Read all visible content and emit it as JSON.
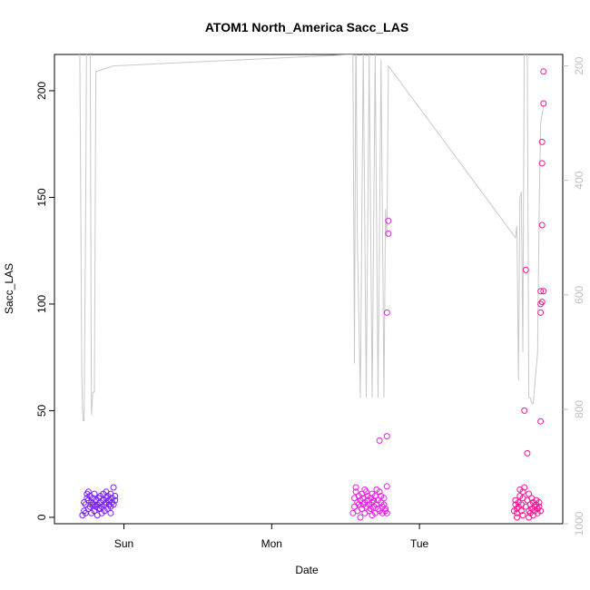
{
  "chart_data": {
    "type": "scatter",
    "title": "ATOM1 North_America Sacc_LAS",
    "xlabel": "Date",
    "ylabel": "Sacc_LAS",
    "x_ticks": [
      "Sun",
      "Mon",
      "Tue"
    ],
    "x_tick_pos": [
      1.0,
      2.0,
      3.0
    ],
    "xlim": [
      0.53,
      3.97
    ],
    "ylim": [
      -3,
      217
    ],
    "y_ticks": [
      0,
      50,
      100,
      150,
      200
    ],
    "y2_ticks": [
      200,
      400,
      600,
      800,
      1000
    ],
    "y2lim": [
      1000,
      180
    ],
    "grid": false,
    "colors": {
      "scatter_group1": "#7a1fff",
      "scatter_group2": "#e91ee6",
      "scatter_group3": "#ff1493",
      "secondary_line": "#c8c8c8"
    },
    "series": [
      {
        "color": "#7a1fff",
        "points": [
          [
            0.72,
            1
          ],
          [
            0.73,
            3
          ],
          [
            0.74,
            2
          ],
          [
            0.74,
            6
          ],
          [
            0.75,
            9
          ],
          [
            0.75,
            11
          ],
          [
            0.76,
            4
          ],
          [
            0.76,
            8
          ],
          [
            0.77,
            5
          ],
          [
            0.77,
            10
          ],
          [
            0.78,
            7
          ],
          [
            0.78,
            2
          ],
          [
            0.79,
            6
          ],
          [
            0.79,
            9
          ],
          [
            0.8,
            3
          ],
          [
            0.8,
            11
          ],
          [
            0.81,
            5
          ],
          [
            0.81,
            8
          ],
          [
            0.82,
            1
          ],
          [
            0.82,
            6
          ],
          [
            0.83,
            9
          ],
          [
            0.83,
            4
          ],
          [
            0.84,
            7
          ],
          [
            0.84,
            10
          ],
          [
            0.85,
            2
          ],
          [
            0.85,
            5
          ],
          [
            0.86,
            8
          ],
          [
            0.86,
            11
          ],
          [
            0.87,
            6
          ],
          [
            0.87,
            3
          ],
          [
            0.88,
            9
          ],
          [
            0.88,
            7
          ],
          [
            0.89,
            4
          ],
          [
            0.89,
            10
          ],
          [
            0.9,
            6
          ],
          [
            0.9,
            8
          ],
          [
            0.91,
            11
          ],
          [
            0.91,
            5
          ],
          [
            0.92,
            7
          ],
          [
            0.92,
            9
          ],
          [
            0.93,
            14
          ],
          [
            0.93,
            6
          ],
          [
            0.94,
            8
          ],
          [
            0.94,
            10
          ],
          [
            0.73,
            7
          ],
          [
            0.76,
            12
          ],
          [
            0.8,
            6
          ],
          [
            0.84,
            4
          ],
          [
            0.88,
            12
          ],
          [
            0.91,
            2
          ]
        ]
      },
      {
        "color": "#e91ee6",
        "points": [
          [
            2.55,
            2
          ],
          [
            2.56,
            5
          ],
          [
            2.56,
            9
          ],
          [
            2.57,
            12
          ],
          [
            2.57,
            14
          ],
          [
            2.58,
            7
          ],
          [
            2.58,
            3
          ],
          [
            2.59,
            10
          ],
          [
            2.59,
            6
          ],
          [
            2.6,
            8
          ],
          [
            2.61,
            11
          ],
          [
            2.61,
            4
          ],
          [
            2.62,
            6
          ],
          [
            2.62,
            9
          ],
          [
            2.63,
            2
          ],
          [
            2.63,
            7
          ],
          [
            2.64,
            12
          ],
          [
            2.64,
            5
          ],
          [
            2.65,
            8
          ],
          [
            2.65,
            10
          ],
          [
            2.66,
            3
          ],
          [
            2.66,
            6
          ],
          [
            2.67,
            9
          ],
          [
            2.67,
            4
          ],
          [
            2.68,
            7
          ],
          [
            2.68,
            11
          ],
          [
            2.69,
            5
          ],
          [
            2.69,
            8
          ],
          [
            2.7,
            2
          ],
          [
            2.7,
            10
          ],
          [
            2.71,
            6
          ],
          [
            2.71,
            13
          ],
          [
            2.72,
            4
          ],
          [
            2.72,
            8
          ],
          [
            2.73,
            36
          ],
          [
            2.73,
            3
          ],
          [
            2.74,
            7
          ],
          [
            2.74,
            10
          ],
          [
            2.75,
            5
          ],
          [
            2.75,
            2
          ],
          [
            2.76,
            9
          ],
          [
            2.76,
            6
          ],
          [
            2.77,
            3
          ],
          [
            2.77,
            4
          ],
          [
            2.78,
            2
          ],
          [
            2.78,
            14.5
          ],
          [
            2.78,
            38
          ],
          [
            2.78,
            96
          ],
          [
            2.79,
            133
          ],
          [
            2.79,
            139
          ],
          [
            2.6,
            0
          ],
          [
            2.63,
            13
          ],
          [
            2.68,
            1
          ],
          [
            2.73,
            12
          ]
        ]
      },
      {
        "color": "#ff1493",
        "points": [
          [
            3.64,
            3
          ],
          [
            3.65,
            6
          ],
          [
            3.65,
            8
          ],
          [
            3.66,
            4
          ],
          [
            3.66,
            2
          ],
          [
            3.67,
            7
          ],
          [
            3.67,
            5
          ],
          [
            3.68,
            13
          ],
          [
            3.68,
            10
          ],
          [
            3.69,
            3
          ],
          [
            3.69,
            6
          ],
          [
            3.7,
            9
          ],
          [
            3.7,
            1
          ],
          [
            3.71,
            50
          ],
          [
            3.71,
            14
          ],
          [
            3.72,
            116
          ],
          [
            3.72,
            5
          ],
          [
            3.73,
            30
          ],
          [
            3.73,
            8
          ],
          [
            3.74,
            3
          ],
          [
            3.74,
            11
          ],
          [
            3.75,
            6
          ],
          [
            3.75,
            2
          ],
          [
            3.76,
            9
          ],
          [
            3.76,
            4
          ],
          [
            3.77,
            7
          ],
          [
            3.77,
            1
          ],
          [
            3.78,
            5
          ],
          [
            3.78,
            3
          ],
          [
            3.79,
            8
          ],
          [
            3.79,
            6
          ],
          [
            3.8,
            4
          ],
          [
            3.8,
            2
          ],
          [
            3.81,
            7
          ],
          [
            3.81,
            5
          ],
          [
            3.82,
            3
          ],
          [
            3.82,
            45
          ],
          [
            3.82,
            96
          ],
          [
            3.82,
            100
          ],
          [
            3.82,
            106
          ],
          [
            3.83,
            137
          ],
          [
            3.83,
            166
          ],
          [
            3.83,
            176
          ],
          [
            3.84,
            194
          ],
          [
            3.84,
            209
          ],
          [
            3.83,
            101
          ],
          [
            3.84,
            106
          ],
          [
            3.66,
            0
          ],
          [
            3.7,
            12
          ],
          [
            3.74,
            0
          ]
        ]
      }
    ],
    "secondary_line": {
      "axis": "right",
      "points": [
        [
          0.7,
          120
        ],
        [
          0.715,
          740
        ],
        [
          0.72,
          800
        ],
        [
          0.725,
          820
        ],
        [
          0.73,
          820
        ],
        [
          0.74,
          500
        ],
        [
          0.75,
          20
        ],
        [
          0.77,
          20
        ],
        [
          0.78,
          810
        ],
        [
          0.79,
          770
        ],
        [
          0.8,
          770
        ],
        [
          0.81,
          210
        ],
        [
          0.93,
          200
        ],
        [
          2.55,
          180
        ],
        [
          2.56,
          720
        ],
        [
          2.57,
          120
        ],
        [
          2.58,
          500
        ],
        [
          2.6,
          780
        ],
        [
          2.62,
          170
        ],
        [
          2.64,
          780
        ],
        [
          2.66,
          180
        ],
        [
          2.68,
          780
        ],
        [
          2.7,
          180
        ],
        [
          2.72,
          780
        ],
        [
          2.74,
          190
        ],
        [
          2.76,
          780
        ],
        [
          2.77,
          450
        ],
        [
          2.78,
          500
        ],
        [
          2.79,
          200
        ],
        [
          3.65,
          500
        ],
        [
          3.66,
          480
        ],
        [
          3.67,
          750
        ],
        [
          3.68,
          430
        ],
        [
          3.69,
          420
        ],
        [
          3.7,
          700
        ],
        [
          3.71,
          130
        ],
        [
          3.72,
          170
        ],
        [
          3.73,
          170
        ],
        [
          3.74,
          780
        ],
        [
          3.75,
          780
        ],
        [
          3.76,
          790
        ],
        [
          3.77,
          790
        ],
        [
          3.8,
          700
        ],
        [
          3.81,
          450
        ],
        [
          3.82,
          300
        ],
        [
          3.84,
          270
        ]
      ]
    }
  }
}
